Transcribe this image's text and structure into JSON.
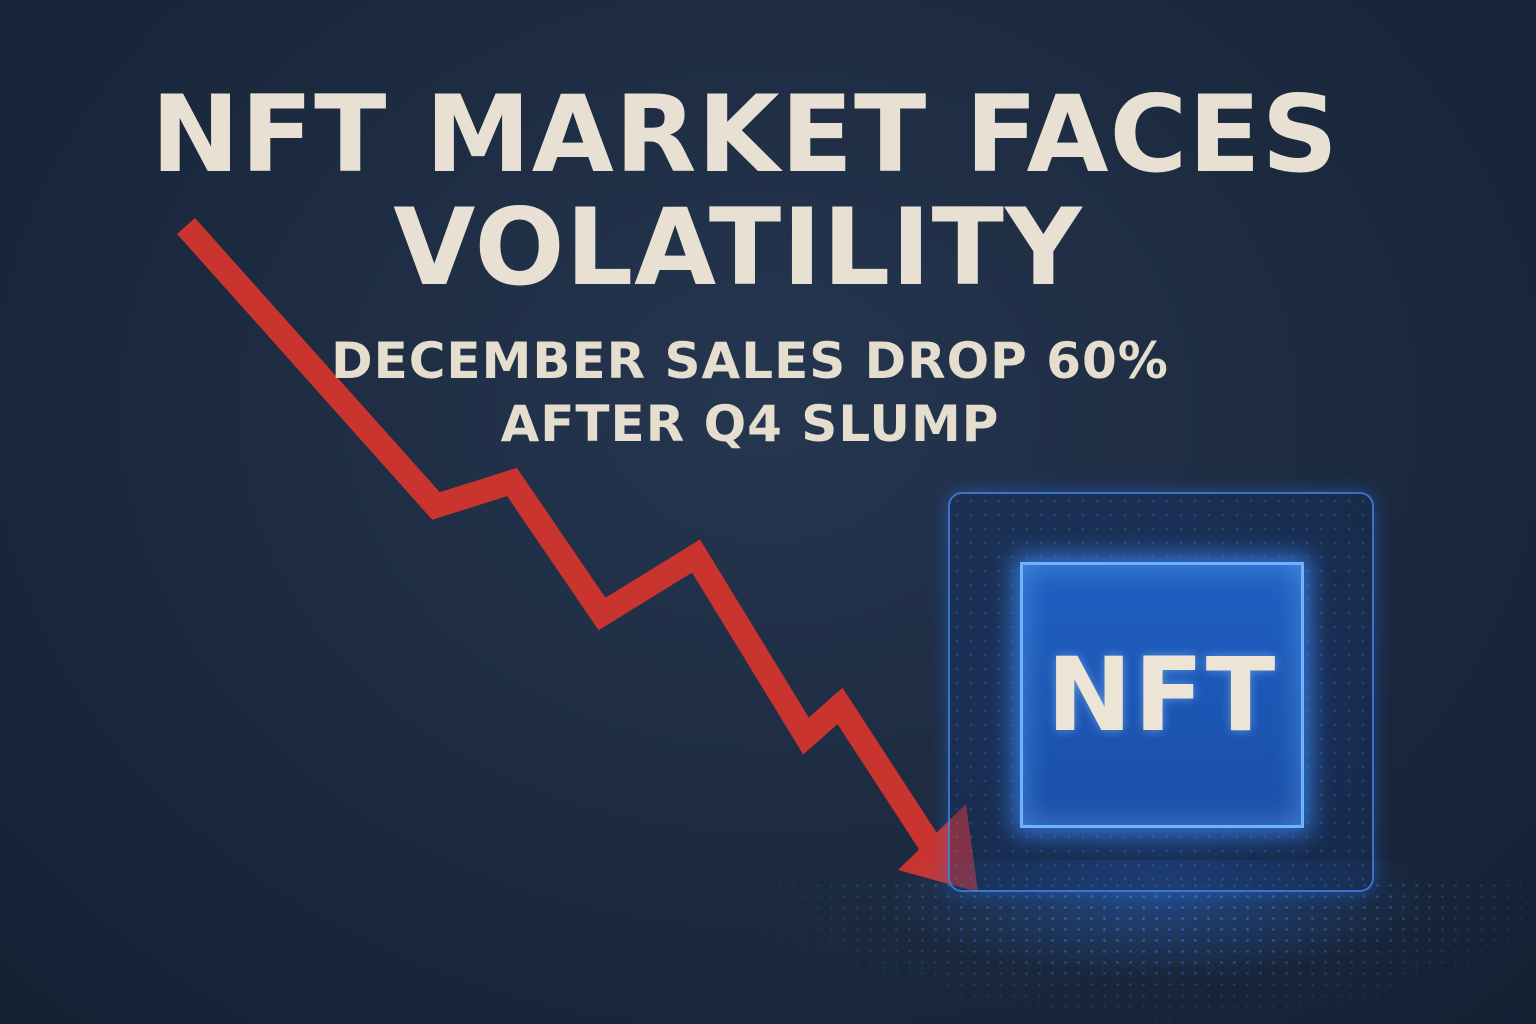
{
  "headline": {
    "line1": "NFT MARKET FACES",
    "line2": "VOLATILITY"
  },
  "subheadline": {
    "line1": "DECEMBER SALES DROP 60%",
    "line2": "AFTER Q4 SLUMP"
  },
  "badge": {
    "label": "NFT"
  },
  "colors": {
    "background": "#1c2a3f",
    "text": "#e8e1d3",
    "arrow": "#c9342f",
    "neon": "#3d8bff"
  }
}
